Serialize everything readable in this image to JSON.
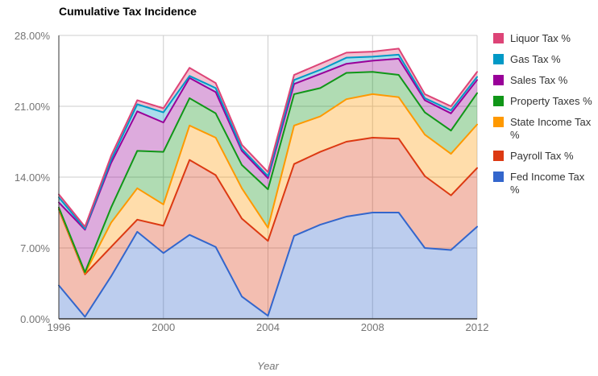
{
  "title": "Cumulative Tax Incidence",
  "x_axis_title": "Year",
  "legend": {
    "position": "right",
    "items": [
      {
        "id": "liquor-tax",
        "label": "Liquor Tax %",
        "color": "#DD4477"
      },
      {
        "id": "gas-tax",
        "label": "Gas Tax %",
        "color": "#0099C6"
      },
      {
        "id": "sales-tax",
        "label": "Sales Tax %",
        "color": "#990099"
      },
      {
        "id": "property-taxes",
        "label": "Property Taxes %",
        "color": "#109618"
      },
      {
        "id": "state-income-tax",
        "label": "State Income Tax %",
        "color": "#FF9900"
      },
      {
        "id": "payroll-tax",
        "label": "Payroll Tax %",
        "color": "#DC3912"
      },
      {
        "id": "fed-income-tax",
        "label": "Fed Income Tax %",
        "color": "#3366CC"
      }
    ]
  },
  "chart_data": {
    "type": "area",
    "stacked": true,
    "title": "Cumulative Tax Incidence",
    "xlabel": "Year",
    "ylabel": "",
    "grid": true,
    "legend_position": "right",
    "ylim": [
      0,
      28
    ],
    "x": [
      1996,
      1997,
      1998,
      1999,
      2000,
      2001,
      2002,
      2003,
      2004,
      2005,
      2006,
      2007,
      2008,
      2009,
      2010,
      2011,
      2012
    ],
    "x_ticks": [
      {
        "value": 1996,
        "label": "1996"
      },
      {
        "value": 2000,
        "label": "2000"
      },
      {
        "value": 2004,
        "label": "2004"
      },
      {
        "value": 2008,
        "label": "2008"
      },
      {
        "value": 2012,
        "label": "2012"
      }
    ],
    "y_ticks": [
      {
        "value": 0,
        "label": "0.00%"
      },
      {
        "value": 7,
        "label": "7.00%"
      },
      {
        "value": 14,
        "label": "14.00%"
      },
      {
        "value": 21,
        "label": "21.00%"
      },
      {
        "value": 28,
        "label": "28.00%"
      }
    ],
    "series": [
      {
        "name": "Fed Income Tax %",
        "color": "#3366CC",
        "values": [
          3.3,
          0.2,
          4.2,
          8.6,
          6.5,
          8.3,
          7.1,
          2.2,
          0.3,
          8.2,
          9.3,
          10.1,
          10.5,
          10.5,
          7.0,
          6.8,
          9.1
        ]
      },
      {
        "name": "Payroll Tax %",
        "color": "#DC3912",
        "values": [
          7.5,
          4.2,
          2.9,
          1.2,
          2.7,
          7.4,
          7.1,
          7.7,
          7.4,
          7.1,
          7.2,
          7.4,
          7.4,
          7.3,
          7.1,
          5.4,
          5.8
        ]
      },
      {
        "name": "State Income Tax %",
        "color": "#FF9900",
        "values": [
          0.1,
          0.1,
          2.4,
          3.1,
          2.1,
          3.4,
          3.7,
          3.0,
          1.3,
          3.8,
          3.5,
          4.2,
          4.3,
          4.1,
          4.1,
          4.1,
          4.3
        ]
      },
      {
        "name": "Property Taxes %",
        "color": "#109618",
        "values": [
          0.1,
          0.1,
          1.5,
          3.7,
          5.2,
          2.7,
          2.4,
          2.3,
          3.8,
          3.1,
          2.8,
          2.6,
          2.2,
          2.2,
          2.2,
          2.3,
          3.1
        ]
      },
      {
        "name": "Sales Tax %",
        "color": "#990099",
        "values": [
          0.5,
          4.2,
          4.4,
          3.9,
          2.9,
          2.0,
          2.1,
          1.4,
          1.1,
          1.0,
          1.4,
          0.9,
          1.1,
          1.6,
          1.2,
          1.7,
          1.3
        ]
      },
      {
        "name": "Gas Tax %",
        "color": "#0099C6",
        "values": [
          0.5,
          0.1,
          0.3,
          0.7,
          1.0,
          0.2,
          0.4,
          0.2,
          0.2,
          0.4,
          0.4,
          0.6,
          0.4,
          0.4,
          0.2,
          0.3,
          0.3
        ]
      },
      {
        "name": "Liquor Tax %",
        "color": "#DD4477",
        "values": [
          0.3,
          0.2,
          0.4,
          0.4,
          0.4,
          0.8,
          0.5,
          0.4,
          0.4,
          0.5,
          0.6,
          0.5,
          0.5,
          0.6,
          0.4,
          0.4,
          0.5
        ]
      }
    ],
    "styles": {
      "gridline_color": "#CCCCCC",
      "axis_line_color": "#333333",
      "area_fill_opacity": 0.33,
      "line_width": 2
    }
  }
}
